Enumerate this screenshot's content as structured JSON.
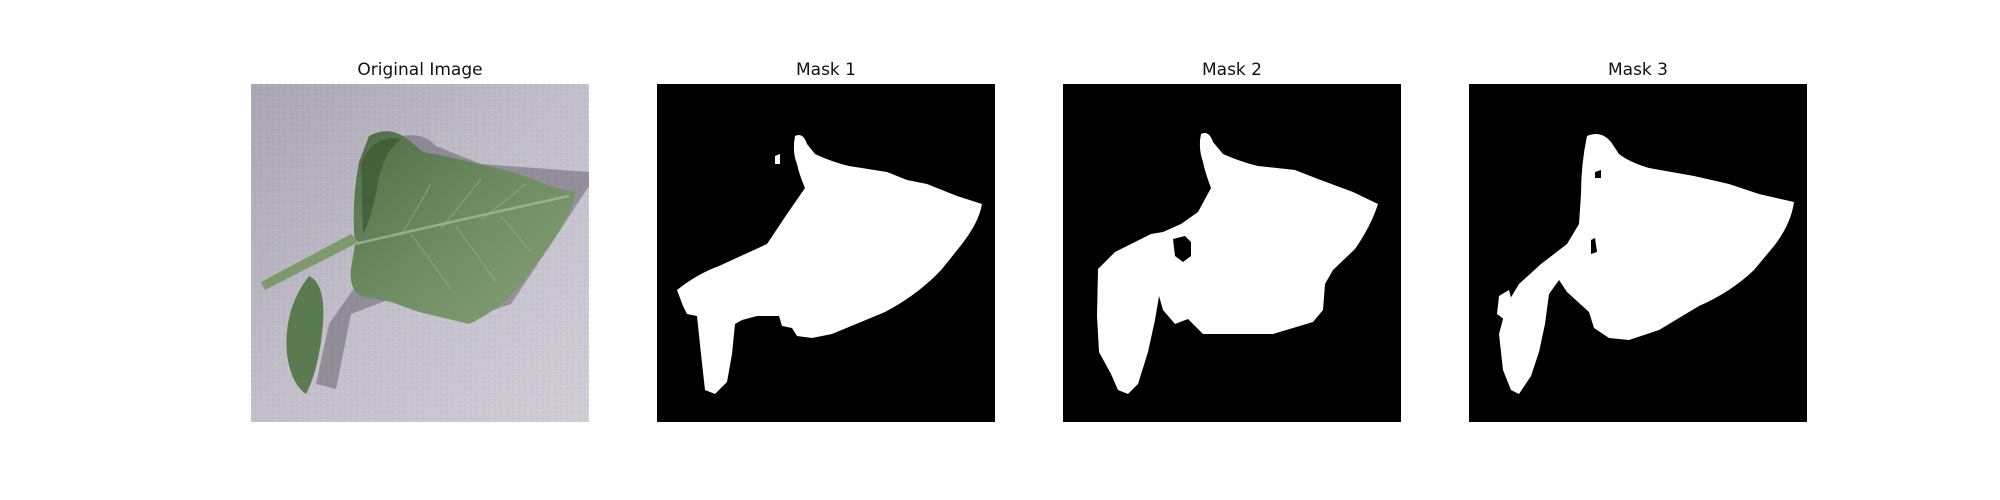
{
  "panels": [
    {
      "title": "Original Image"
    },
    {
      "title": "Mask 1"
    },
    {
      "title": "Mask 2"
    },
    {
      "title": "Mask 3"
    }
  ],
  "colors": {
    "background": "#c2bfca",
    "leaf_base": "#5f7f56",
    "leaf_dark": "#3d5a36",
    "leaf_light": "#7c9a6e",
    "shadow": "#56505e",
    "mask_foreground": "#ffffff",
    "mask_background": "#000000"
  }
}
